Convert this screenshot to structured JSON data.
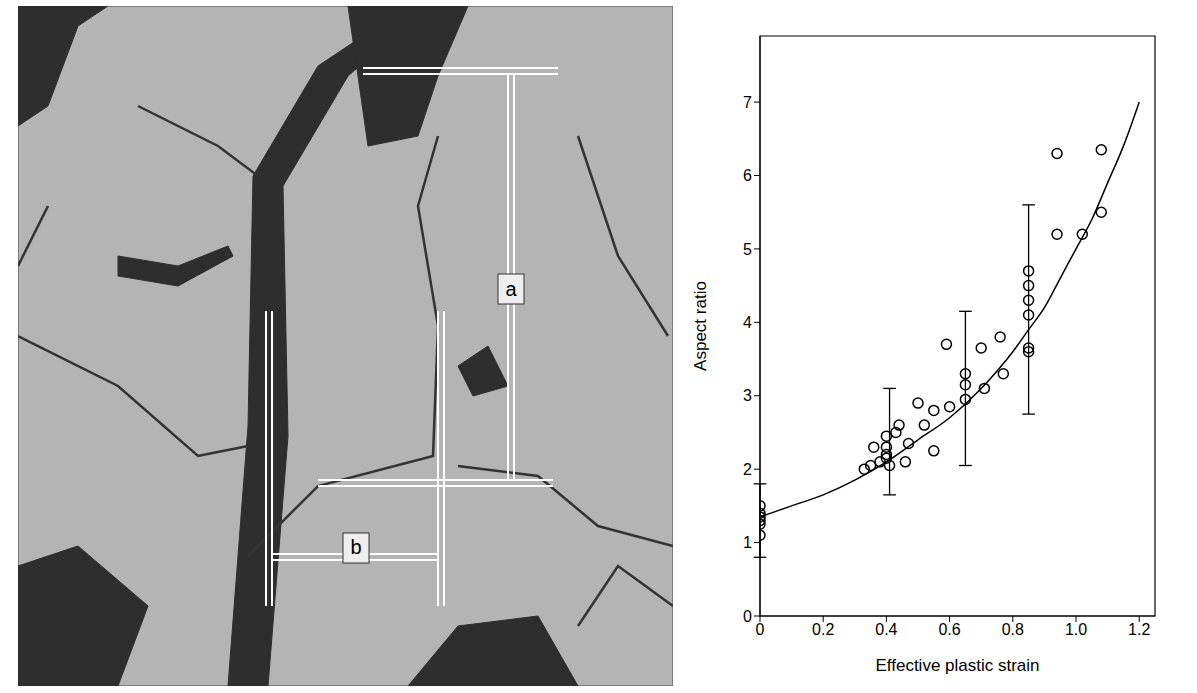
{
  "micrograph": {
    "labels": [
      "a",
      "b"
    ]
  },
  "chart_data": {
    "type": "scatter",
    "x_label": "Effective plastic strain",
    "y_label": "Aspect ratio",
    "xlim": [
      0,
      1.25
    ],
    "ylim": [
      0,
      7.9
    ],
    "xticks": [
      0,
      0.2,
      0.4,
      0.6,
      0.8,
      {
        "value": 1,
        "label": "1.0"
      },
      1.2
    ],
    "yticks": [
      0,
      1,
      2,
      3,
      4,
      5,
      6,
      7
    ],
    "grid": false,
    "series": [
      {
        "type": "scatter",
        "marker": "circle",
        "color": "#000000",
        "x": [
          0,
          0,
          0,
          0,
          0,
          0,
          0.33,
          0.35,
          0.36,
          0.38,
          0.4,
          0.4,
          0.4,
          0.4,
          0.41,
          0.43,
          0.44,
          0.46,
          0.47,
          0.5,
          0.52,
          0.55,
          0.55,
          0.59,
          0.6,
          0.65,
          0.65,
          0.65,
          0.7,
          0.71,
          0.76,
          0.77,
          0.85,
          0.85,
          0.85,
          0.85,
          0.85,
          0.85,
          0.94,
          0.94,
          1.02,
          1.08,
          1.08
        ],
        "values": [
          1.5,
          1.4,
          1.3,
          1.25,
          1.1,
          1.35,
          2.0,
          2.05,
          2.3,
          2.1,
          2.2,
          2.15,
          2.3,
          2.45,
          2.05,
          2.5,
          2.6,
          2.1,
          2.35,
          2.9,
          2.6,
          2.8,
          2.25,
          3.7,
          2.85,
          3.3,
          3.15,
          2.95,
          3.65,
          3.1,
          3.8,
          3.3,
          4.7,
          4.5,
          4.3,
          4.1,
          3.65,
          3.6,
          6.3,
          5.2,
          5.2,
          6.35,
          5.5
        ]
      },
      {
        "type": "line",
        "line_style": "solid",
        "color": "#000000",
        "x": [
          0,
          0.1,
          0.2,
          0.3,
          0.4,
          0.5,
          0.6,
          0.7,
          0.8,
          0.85,
          0.9,
          0.95,
          1.0,
          1.05,
          1.1,
          1.15,
          1.2
        ],
        "values": [
          1.35,
          1.5,
          1.65,
          1.85,
          2.1,
          2.4,
          2.7,
          3.1,
          3.6,
          3.9,
          4.2,
          4.6,
          5.0,
          5.4,
          5.9,
          6.4,
          7.0
        ]
      },
      {
        "type": "errorbar",
        "color": "#000000",
        "x": [
          0,
          0.41,
          0.65,
          0.85
        ],
        "error_low": [
          0.8,
          1.65,
          2.05,
          2.75
        ],
        "error_high": [
          1.8,
          3.1,
          4.15,
          5.6
        ]
      }
    ]
  }
}
